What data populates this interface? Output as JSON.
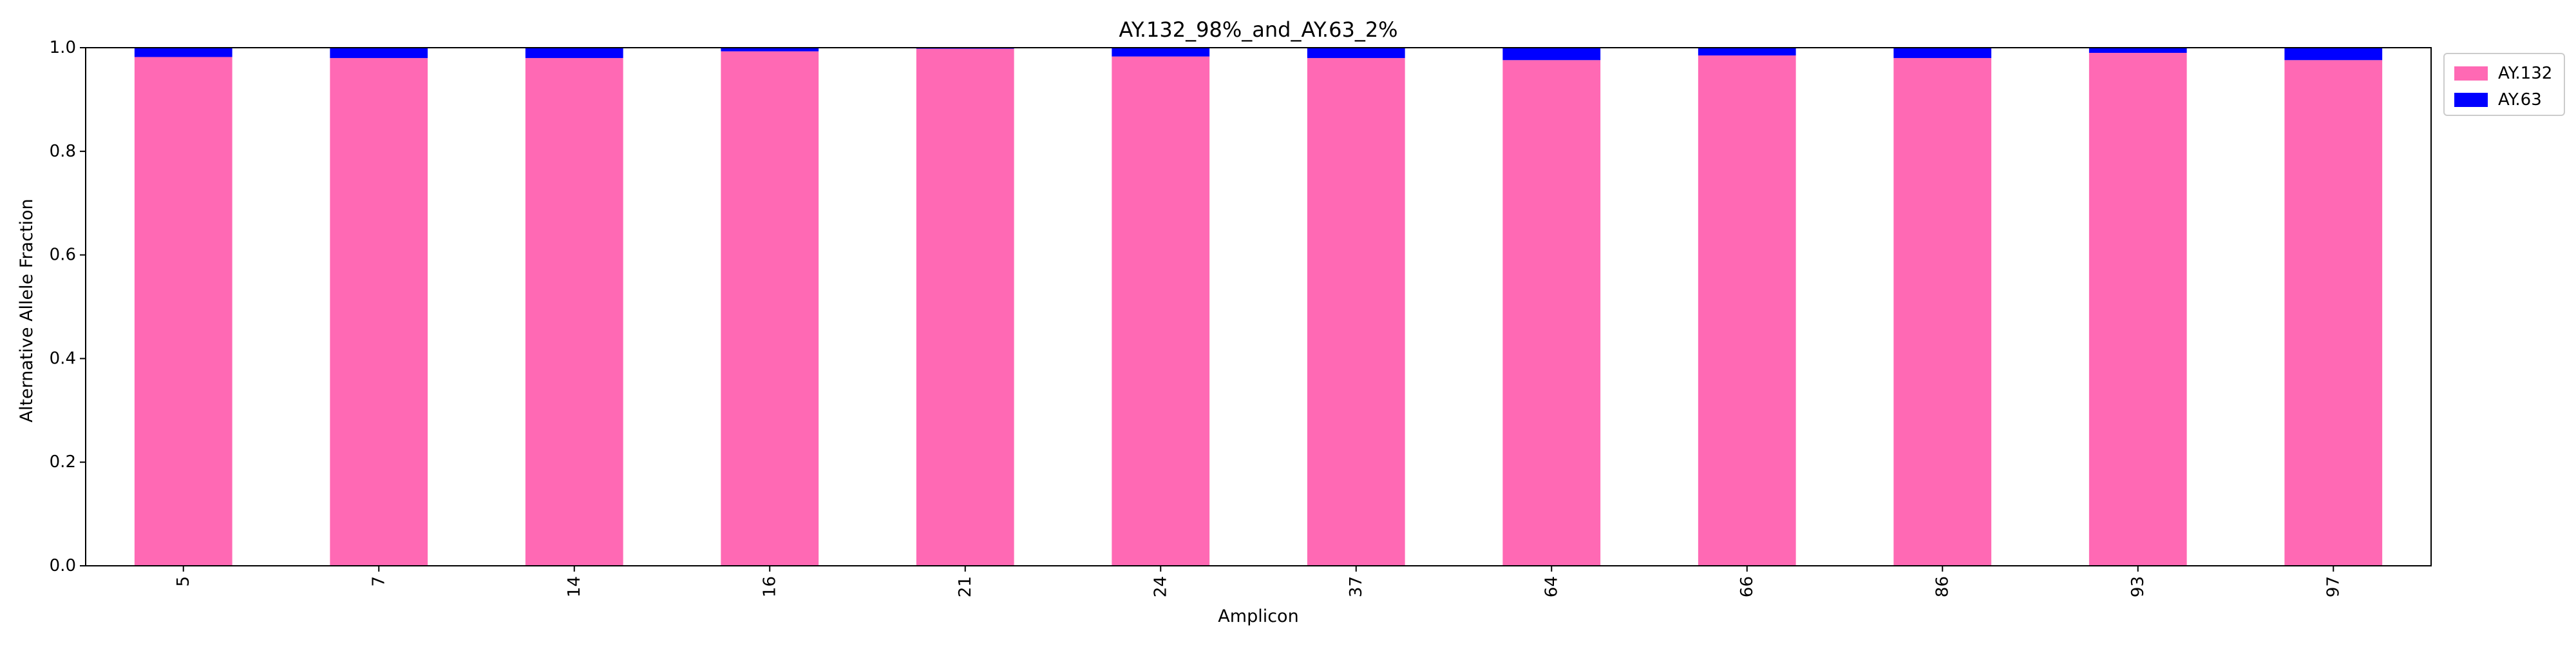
{
  "chart_data": {
    "type": "bar",
    "stacked": true,
    "title": "AY.132_98%_and_AY.63_2%",
    "xlabel": "Amplicon",
    "ylabel": "Alternative Allele Fraction",
    "ylim": [
      0,
      1.0
    ],
    "yticks": [
      "0.0",
      "0.2",
      "0.4",
      "0.6",
      "0.8",
      "1.0"
    ],
    "categories": [
      "5",
      "7",
      "14",
      "16",
      "21",
      "24",
      "37",
      "64",
      "66",
      "86",
      "93",
      "97"
    ],
    "series": [
      {
        "name": "AY.132",
        "color": "#ff69b4",
        "values": [
          0.982,
          0.98,
          0.98,
          0.993,
          0.998,
          0.983,
          0.98,
          0.976,
          0.985,
          0.98,
          0.99,
          0.976
        ]
      },
      {
        "name": "AY.63",
        "color": "#0000ff",
        "values": [
          0.018,
          0.02,
          0.02,
          0.007,
          0.002,
          0.017,
          0.02,
          0.024,
          0.015,
          0.02,
          0.01,
          0.024
        ]
      }
    ],
    "legend_position": "upper-right-outside",
    "grid": false
  }
}
